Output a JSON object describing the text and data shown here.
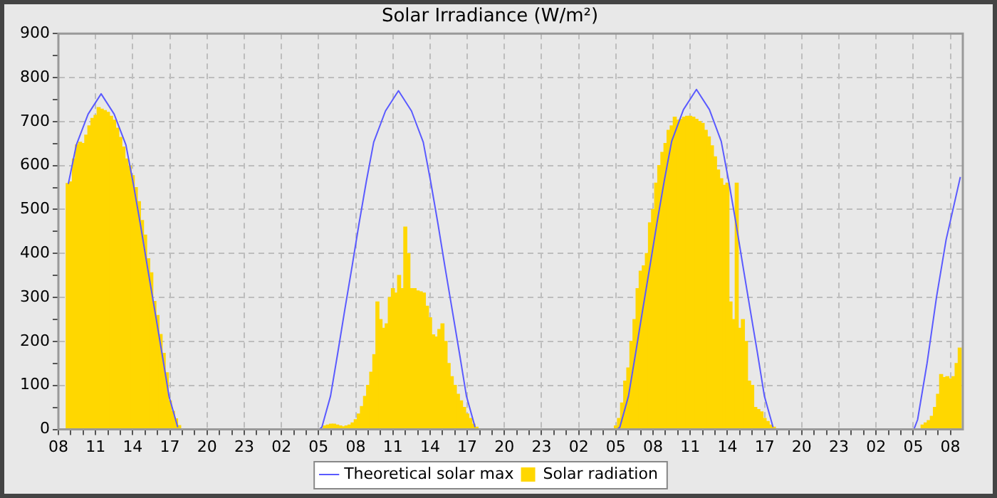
{
  "chart_data": {
    "type": "bar",
    "title": "Solar Irradiance (W/m²)",
    "legend": "bottom",
    "grid": true,
    "marker": "none",
    "xlim": [
      "--01-01T08:00",
      "--01-04T09:00"
    ],
    "xticks": [
      {
        "value": "--01-01T08:00",
        "label": "08"
      },
      {
        "value": "--01-01T09:00",
        "label": null
      },
      {
        "value": "--01-01T10:00",
        "label": null
      },
      {
        "value": "--01-01T11:00",
        "label": "11"
      },
      {
        "value": "--01-01T12:00",
        "label": null
      },
      {
        "value": "--01-01T13:00",
        "label": null
      },
      {
        "value": "--01-01T14:00",
        "label": "14"
      },
      {
        "value": "--01-01T15:00",
        "label": null
      },
      {
        "value": "--01-01T16:00",
        "label": null
      },
      {
        "value": "--01-01T17:00",
        "label": "17"
      },
      {
        "value": "--01-01T18:00",
        "label": null
      },
      {
        "value": "--01-01T19:00",
        "label": null
      },
      {
        "value": "--01-01T20:00",
        "label": "20"
      },
      {
        "value": "--01-01T21:00",
        "label": null
      },
      {
        "value": "--01-01T22:00",
        "label": null
      },
      {
        "value": "--01-01T23:00",
        "label": "23"
      },
      {
        "value": "--01-02T00:00",
        "label": null
      },
      {
        "value": "--01-02T01:00",
        "label": null
      },
      {
        "value": "--01-02T02:00",
        "label": "02"
      },
      {
        "value": "--01-02T03:00",
        "label": null
      },
      {
        "value": "--01-02T04:00",
        "label": null
      },
      {
        "value": "--01-02T05:00",
        "label": "05"
      },
      {
        "value": "--01-02T06:00",
        "label": null
      },
      {
        "value": "--01-02T07:00",
        "label": null
      },
      {
        "value": "--01-02T08:00",
        "label": "08"
      },
      {
        "value": "--01-02T09:00",
        "label": null
      },
      {
        "value": "--01-02T10:00",
        "label": null
      },
      {
        "value": "--01-02T11:00",
        "label": "11"
      },
      {
        "value": "--01-02T12:00",
        "label": null
      },
      {
        "value": "--01-02T13:00",
        "label": null
      },
      {
        "value": "--01-02T14:00",
        "label": "14"
      },
      {
        "value": "--01-02T15:00",
        "label": null
      },
      {
        "value": "--01-02T16:00",
        "label": null
      },
      {
        "value": "--01-02T17:00",
        "label": "17"
      },
      {
        "value": "--01-02T18:00",
        "label": null
      },
      {
        "value": "--01-02T19:00",
        "label": null
      },
      {
        "value": "--01-02T20:00",
        "label": "20"
      },
      {
        "value": "--01-02T21:00",
        "label": null
      },
      {
        "value": "--01-02T22:00",
        "label": null
      },
      {
        "value": "--01-02T23:00",
        "label": "23"
      },
      {
        "value": "--01-03T00:00",
        "label": null
      },
      {
        "value": "--01-03T01:00",
        "label": null
      },
      {
        "value": "--01-03T02:00",
        "label": "02"
      },
      {
        "value": "--01-03T03:00",
        "label": null
      },
      {
        "value": "--01-03T04:00",
        "label": null
      },
      {
        "value": "--01-03T05:00",
        "label": "05"
      },
      {
        "value": "--01-03T06:00",
        "label": null
      },
      {
        "value": "--01-03T07:00",
        "label": null
      },
      {
        "value": "--01-03T08:00",
        "label": "08"
      },
      {
        "value": "--01-03T09:00",
        "label": null
      },
      {
        "value": "--01-03T10:00",
        "label": null
      },
      {
        "value": "--01-03T11:00",
        "label": "11"
      },
      {
        "value": "--01-03T12:00",
        "label": null
      },
      {
        "value": "--01-03T13:00",
        "label": null
      },
      {
        "value": "--01-03T14:00",
        "label": "14"
      },
      {
        "value": "--01-03T15:00",
        "label": null
      },
      {
        "value": "--01-03T16:00",
        "label": null
      },
      {
        "value": "--01-03T17:00",
        "label": "17"
      },
      {
        "value": "--01-03T18:00",
        "label": null
      },
      {
        "value": "--01-03T19:00",
        "label": null
      },
      {
        "value": "--01-03T20:00",
        "label": "20"
      },
      {
        "value": "--01-03T21:00",
        "label": null
      },
      {
        "value": "--01-03T22:00",
        "label": null
      },
      {
        "value": "--01-03T23:00",
        "label": "23"
      },
      {
        "value": "--01-04T00:00",
        "label": null
      },
      {
        "value": "--01-04T01:00",
        "label": null
      },
      {
        "value": "--01-04T02:00",
        "label": "02"
      },
      {
        "value": "--01-04T03:00",
        "label": null
      },
      {
        "value": "--01-04T04:00",
        "label": null
      },
      {
        "value": "--01-04T05:00",
        "label": "05"
      },
      {
        "value": "--01-04T06:00",
        "label": null
      },
      {
        "value": "--01-04T07:00",
        "label": null
      },
      {
        "value": "--01-04T08:00",
        "label": "08"
      }
    ],
    "ylim": [
      0,
      900
    ],
    "yticks": [
      0,
      {
        "value": 50,
        "label": null
      },
      100,
      {
        "value": 150,
        "label": null
      },
      200,
      {
        "value": 250,
        "label": null
      },
      300,
      {
        "value": 350,
        "label": null
      },
      400,
      {
        "value": 450,
        "label": null
      },
      500,
      {
        "value": 550,
        "label": null
      },
      600,
      {
        "value": 650,
        "label": null
      },
      700,
      {
        "value": 750,
        "label": null
      },
      800,
      {
        "value": 850,
        "label": null
      },
      900
    ],
    "series": [
      {
        "name": "Theoretical solar max",
        "type": "line",
        "color": "#5a5aff",
        "x": [
          "--01-01T08:48",
          "--01-01T09:27",
          "--01-01T10:24",
          "--01-01T11:27",
          "--01-01T12:30",
          "--01-01T13:27",
          "--01-01T14:03",
          "--01-01T14:38",
          "--01-01T15:12",
          "--01-01T15:47",
          "--01-01T16:22",
          "--01-01T16:56",
          "--01-01T17:38",
          "--01-01T17:51",
          "--01-02T05:03",
          "--01-02T05:16",
          "--01-02T05:58",
          "--01-02T06:33",
          "--01-02T07:07",
          "--01-02T07:42",
          "--01-02T08:16",
          "--01-02T08:51",
          "--01-02T09:27",
          "--01-02T10:24",
          "--01-02T11:27",
          "--01-02T12:30",
          "--01-02T13:27",
          "--01-02T14:03",
          "--01-02T14:38",
          "--01-02T15:12",
          "--01-02T15:47",
          "--01-02T16:22",
          "--01-02T16:56",
          "--01-02T17:38",
          "--01-02T17:51",
          "--01-03T05:06",
          "--01-03T05:19",
          "--01-03T06:01",
          "--01-03T06:36",
          "--01-03T07:10",
          "--01-03T07:45",
          "--01-03T08:19",
          "--01-03T08:54",
          "--01-03T09:30",
          "--01-03T10:27",
          "--01-03T11:30",
          "--01-03T12:33",
          "--01-03T13:30",
          "--01-03T14:06",
          "--01-03T14:41",
          "--01-03T15:15",
          "--01-03T15:50",
          "--01-03T16:25",
          "--01-03T16:59",
          "--01-03T17:41",
          "--01-03T17:54",
          "--01-04T05:03",
          "--01-04T05:21",
          "--01-04T06:07",
          "--01-04T06:53",
          "--01-04T07:39",
          "--01-04T08:48"
        ],
        "values": [
          558,
          647,
          717,
          763,
          717,
          647,
          558,
          464,
          367,
          270,
          172,
          75,
          5,
          null,
          0,
          5,
          76,
          174,
          272,
          370,
          468,
          563,
          653,
          724,
          770,
          724,
          653,
          563,
          468,
          370,
          272,
          174,
          76,
          5,
          null,
          0,
          5,
          76,
          175,
          273,
          372,
          470,
          565,
          655,
          727,
          773,
          727,
          655,
          565,
          470,
          372,
          273,
          175,
          76,
          5,
          null,
          0,
          22,
          151,
          302,
          431,
          574
        ]
      },
      {
        "name": "Solar radiation",
        "color": "#ffd700",
        "x": [
          "--01-01T08:45",
          "--01-01T09:00",
          "--01-01T09:15",
          "--01-01T09:30",
          "--01-01T09:45",
          "--01-01T10:00",
          "--01-01T10:15",
          "--01-01T10:30",
          "--01-01T10:45",
          "--01-01T11:00",
          "--01-01T11:15",
          "--01-01T11:30",
          "--01-01T11:45",
          "--01-01T12:00",
          "--01-01T12:15",
          "--01-01T12:30",
          "--01-01T12:45",
          "--01-01T13:00",
          "--01-01T13:15",
          "--01-01T13:30",
          "--01-01T13:45",
          "--01-01T14:00",
          "--01-01T14:15",
          "--01-01T14:30",
          "--01-01T14:45",
          "--01-01T15:00",
          "--01-01T15:15",
          "--01-01T15:30",
          "--01-01T15:45",
          "--01-01T16:00",
          "--01-01T16:15",
          "--01-01T16:30",
          "--01-01T16:45",
          "--01-01T17:00",
          "--01-01T17:15",
          "--01-01T17:30",
          "--01-01T17:45",
          "--01-02T05:30",
          "--01-02T05:45",
          "--01-02T06:00",
          "--01-02T06:15",
          "--01-02T06:30",
          "--01-02T06:45",
          "--01-02T07:00",
          "--01-02T07:15",
          "--01-02T07:30",
          "--01-02T07:45",
          "--01-02T08:00",
          "--01-02T08:15",
          "--01-02T08:30",
          "--01-02T08:45",
          "--01-02T09:00",
          "--01-02T09:15",
          "--01-02T09:30",
          "--01-02T09:45",
          "--01-02T10:00",
          "--01-02T10:15",
          "--01-02T10:30",
          "--01-02T10:45",
          "--01-02T11:00",
          "--01-02T11:15",
          "--01-02T11:30",
          "--01-02T11:45",
          "--01-02T12:00",
          "--01-02T12:15",
          "--01-02T12:30",
          "--01-02T12:45",
          "--01-02T13:00",
          "--01-02T13:15",
          "--01-02T13:30",
          "--01-02T13:45",
          "--01-02T14:00",
          "--01-02T14:15",
          "--01-02T14:30",
          "--01-02T14:45",
          "--01-02T15:00",
          "--01-02T15:15",
          "--01-02T15:30",
          "--01-02T15:45",
          "--01-02T16:00",
          "--01-02T16:15",
          "--01-02T16:30",
          "--01-02T16:45",
          "--01-02T17:00",
          "--01-02T17:15",
          "--01-02T17:30",
          "--01-02T17:45",
          "--01-03T05:00",
          "--01-03T05:15",
          "--01-03T05:30",
          "--01-03T05:45",
          "--01-03T06:00",
          "--01-03T06:15",
          "--01-03T06:30",
          "--01-03T06:45",
          "--01-03T07:00",
          "--01-03T07:15",
          "--01-03T07:30",
          "--01-03T07:45",
          "--01-03T08:00",
          "--01-03T08:15",
          "--01-03T08:30",
          "--01-03T08:45",
          "--01-03T09:00",
          "--01-03T09:15",
          "--01-03T09:30",
          "--01-03T09:45",
          "--01-03T10:00",
          "--01-03T10:15",
          "--01-03T10:30",
          "--01-03T10:45",
          "--01-03T11:00",
          "--01-03T11:15",
          "--01-03T11:30",
          "--01-03T11:45",
          "--01-03T12:00",
          "--01-03T12:15",
          "--01-03T12:30",
          "--01-03T12:45",
          "--01-03T13:00",
          "--01-03T13:15",
          "--01-03T13:30",
          "--01-03T13:45",
          "--01-03T14:00",
          "--01-03T14:15",
          "--01-03T14:30",
          "--01-03T14:45",
          "--01-03T15:00",
          "--01-03T15:15",
          "--01-03T15:30",
          "--01-03T15:45",
          "--01-03T16:00",
          "--01-03T16:15",
          "--01-03T16:30",
          "--01-03T16:45",
          "--01-03T17:00",
          "--01-03T17:15",
          "--01-03T17:30",
          "--01-03T17:45",
          "--01-04T05:45",
          "--01-04T06:00",
          "--01-04T06:15",
          "--01-04T06:30",
          "--01-04T06:45",
          "--01-04T07:00",
          "--01-04T07:15",
          "--01-04T07:30",
          "--01-04T07:45",
          "--01-04T08:00",
          "--01-04T08:15",
          "--01-04T08:30",
          "--01-04T08:45"
        ],
        "values": [
          559,
          563,
          615,
          647,
          653,
          650,
          669,
          690,
          707,
          714,
          732,
          728,
          725,
          721,
          712,
          703,
          685,
          664,
          642,
          615,
          599,
          577,
          550,
          518,
          475,
          442,
          388,
          356,
          291,
          259,
          216,
          173,
          129,
          65,
          41,
          24,
          9,
          8,
          10,
          12,
          12,
          10,
          8,
          6,
          8,
          10,
          15,
          22,
          35,
          52,
          75,
          100,
          130,
          170,
          290,
          250,
          230,
          240,
          300,
          320,
          310,
          350,
          320,
          460,
          400,
          320,
          320,
          315,
          313,
          310,
          280,
          254,
          215,
          210,
          227,
          240,
          200,
          150,
          120,
          100,
          80,
          65,
          50,
          35,
          25,
          12,
          5,
          8,
          25,
          60,
          110,
          140,
          200,
          250,
          320,
          360,
          372,
          400,
          470,
          500,
          560,
          600,
          630,
          650,
          680,
          690,
          710,
          703,
          705,
          710,
          712,
          712,
          710,
          705,
          700,
          696,
          680,
          665,
          645,
          620,
          590,
          570,
          555,
          560,
          290,
          250,
          560,
          230,
          250,
          200,
          110,
          100,
          50,
          45,
          40,
          25,
          18,
          10,
          5,
          10,
          15,
          20,
          30,
          50,
          80,
          125,
          118,
          120,
          115,
          120,
          150,
          185
        ]
      }
    ]
  }
}
